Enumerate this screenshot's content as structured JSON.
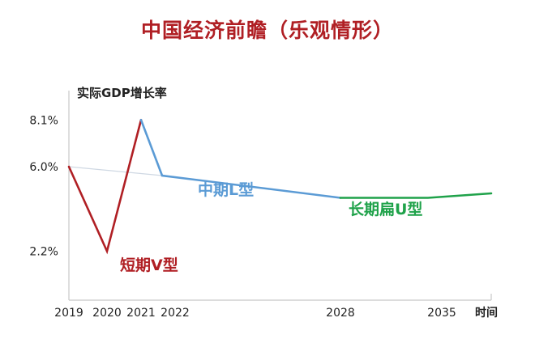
{
  "colors": {
    "title": "#b01f24",
    "v_series": "#b01f24",
    "l_series": "#5b9bd5",
    "u_series": "#1fa24a",
    "trend": "#cfd8e3",
    "axis": "#c8c8c8",
    "text": "#222222"
  },
  "chart_data": {
    "type": "line",
    "title": "中国经济前瞻（乐观情形）",
    "ylabel": "实际GDP增长率",
    "xlabel": "时间",
    "x_ticks": [
      "2019",
      "2020",
      "2021",
      "2022",
      "2028",
      "2035"
    ],
    "y_ticks": [
      "8.1%",
      "6.0%",
      "2.2%"
    ],
    "grid": false,
    "series": [
      {
        "name": "短期V型",
        "color_key": "v_series",
        "points": [
          {
            "x": 2019,
            "y": 6.0
          },
          {
            "x": 2020,
            "y": 2.2
          },
          {
            "x": 2021,
            "y": 8.1
          }
        ]
      },
      {
        "name": "中期L型",
        "color_key": "l_series",
        "points": [
          {
            "x": 2021,
            "y": 8.1
          },
          {
            "x": 2022,
            "y": 5.6
          },
          {
            "x": 2028,
            "y": 4.6
          }
        ]
      },
      {
        "name": "长期扁U型",
        "color_key": "u_series",
        "points": [
          {
            "x": 2028,
            "y": 4.6
          },
          {
            "x": 2033,
            "y": 4.6
          },
          {
            "x": 2035,
            "y": 4.8
          }
        ]
      }
    ],
    "trend_line": {
      "color_key": "trend",
      "points": [
        {
          "x": 2019,
          "y": 6.0
        },
        {
          "x": 2022,
          "y": 5.6
        }
      ]
    }
  }
}
